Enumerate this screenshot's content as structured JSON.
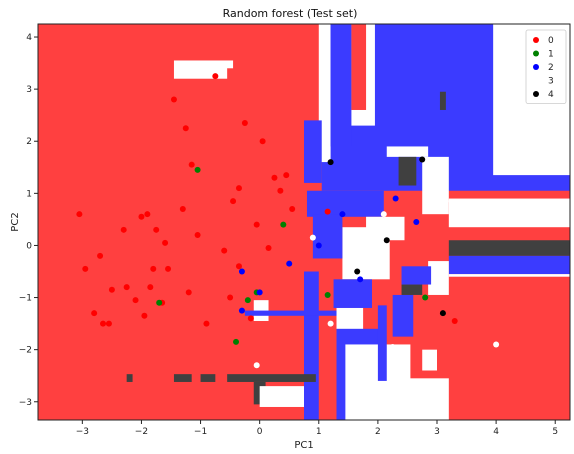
{
  "chart_data": {
    "type": "scatter",
    "title": "Random forest (Test set)",
    "xlabel": "PC1",
    "ylabel": "PC2",
    "xlim": [
      -3.75,
      5.25
    ],
    "ylim": [
      -3.35,
      4.25
    ],
    "xticks": [
      -3,
      -2,
      -1,
      0,
      1,
      2,
      3,
      4,
      5
    ],
    "yticks": [
      -3,
      -2,
      -1,
      0,
      1,
      2,
      3,
      4
    ],
    "legend_position": "top-right",
    "colors": {
      "0": "#ff0000",
      "1": "#008000",
      "2": "#0000ff",
      "3": "#ffffff",
      "4": "#000000",
      "region_0": "#ff4040",
      "region_1": "#3a8a3a",
      "region_2": "#3b3bff",
      "region_3": "#ffffff",
      "region_4": "#404040"
    },
    "regions": [
      {
        "class": "0",
        "x": [
          -3.75,
          5.25
        ],
        "y": [
          -3.35,
          4.25
        ]
      },
      {
        "class": "2",
        "x": [
          1.05,
          5.25
        ],
        "y": [
          1.05,
          4.25
        ]
      },
      {
        "class": "3",
        "x": [
          3.95,
          5.25
        ],
        "y": [
          1.35,
          4.25
        ]
      },
      {
        "class": "3",
        "x": [
          1.0,
          1.2
        ],
        "y": [
          1.6,
          4.25
        ]
      },
      {
        "class": "3",
        "x": [
          1.55,
          1.95
        ],
        "y": [
          2.3,
          4.25
        ]
      },
      {
        "class": "0",
        "x": [
          1.55,
          1.8
        ],
        "y": [
          2.6,
          4.25
        ]
      },
      {
        "class": "2",
        "x": [
          1.2,
          1.55
        ],
        "y": [
          1.9,
          4.25
        ]
      },
      {
        "class": "2",
        "x": [
          0.75,
          1.05
        ],
        "y": [
          1.2,
          2.4
        ]
      },
      {
        "class": "2",
        "x": [
          0.8,
          2.1
        ],
        "y": [
          0.55,
          1.05
        ]
      },
      {
        "class": "3",
        "x": [
          2.15,
          2.85
        ],
        "y": [
          1.7,
          1.9
        ]
      },
      {
        "class": "4",
        "x": [
          2.35,
          2.65
        ],
        "y": [
          1.15,
          1.7
        ]
      },
      {
        "class": "3",
        "x": [
          2.75,
          3.2
        ],
        "y": [
          0.6,
          1.7
        ]
      },
      {
        "class": "3",
        "x": [
          3.2,
          5.25
        ],
        "y": [
          0.35,
          0.9
        ]
      },
      {
        "class": "4",
        "x": [
          3.2,
          5.25
        ],
        "y": [
          -0.2,
          0.1
        ]
      },
      {
        "class": "2",
        "x": [
          3.2,
          5.25
        ],
        "y": [
          -0.55,
          -0.2
        ]
      },
      {
        "class": "3",
        "x": [
          3.2,
          5.25
        ],
        "y": [
          -0.6,
          -0.55
        ]
      },
      {
        "class": "3",
        "x": [
          1.4,
          2.2
        ],
        "y": [
          -0.65,
          0.35
        ]
      },
      {
        "class": "3",
        "x": [
          1.8,
          2.45
        ],
        "y": [
          0.1,
          0.55
        ]
      },
      {
        "class": "2",
        "x": [
          0.9,
          1.4
        ],
        "y": [
          -0.25,
          0.6
        ]
      },
      {
        "class": "2",
        "x": [
          1.25,
          1.9
        ],
        "y": [
          -1.2,
          -0.65
        ]
      },
      {
        "class": "3",
        "x": [
          1.3,
          1.75
        ],
        "y": [
          -2.2,
          -1.2
        ]
      },
      {
        "class": "2",
        "x": [
          1.3,
          2.05
        ],
        "y": [
          -3.35,
          -1.6
        ]
      },
      {
        "class": "3",
        "x": [
          1.45,
          2.55
        ],
        "y": [
          -3.35,
          -1.9
        ]
      },
      {
        "class": "3",
        "x": [
          2.05,
          3.2
        ],
        "y": [
          -3.35,
          -2.55
        ]
      },
      {
        "class": "2",
        "x": [
          2.0,
          2.15
        ],
        "y": [
          -2.6,
          -1.15
        ]
      },
      {
        "class": "2",
        "x": [
          2.25,
          2.6
        ],
        "y": [
          -1.75,
          -0.95
        ]
      },
      {
        "class": "0",
        "x": [
          2.6,
          2.95
        ],
        "y": [
          -2.5,
          -0.85
        ]
      },
      {
        "class": "3",
        "x": [
          2.75,
          3.0
        ],
        "y": [
          -2.4,
          -2.0
        ]
      },
      {
        "class": "3",
        "x": [
          2.85,
          3.2
        ],
        "y": [
          -0.95,
          -0.3
        ]
      },
      {
        "class": "4",
        "x": [
          2.4,
          2.75
        ],
        "y": [
          -0.95,
          -0.75
        ]
      },
      {
        "class": "2",
        "x": [
          2.4,
          2.9
        ],
        "y": [
          -0.75,
          -0.4
        ]
      },
      {
        "class": "2",
        "x": [
          0.75,
          1.0
        ],
        "y": [
          -3.35,
          -0.5
        ]
      },
      {
        "class": "3",
        "x": [
          -0.1,
          0.15
        ],
        "y": [
          -1.45,
          -1.05
        ]
      },
      {
        "class": "2",
        "x": [
          -0.25,
          1.3
        ],
        "y": [
          -1.35,
          -1.25
        ]
      },
      {
        "class": "3",
        "x": [
          -1.45,
          -0.45
        ],
        "y": [
          3.2,
          3.55
        ]
      },
      {
        "class": "0",
        "x": [
          -0.55,
          0.2
        ],
        "y": [
          3.1,
          3.4
        ]
      },
      {
        "class": "4",
        "x": [
          -1.45,
          -1.15
        ],
        "y": [
          -2.62,
          -2.47
        ]
      },
      {
        "class": "4",
        "x": [
          -1.0,
          -0.75
        ],
        "y": [
          -2.62,
          -2.47
        ]
      },
      {
        "class": "4",
        "x": [
          -0.55,
          0.95
        ],
        "y": [
          -2.62,
          -2.47
        ]
      },
      {
        "class": "4",
        "x": [
          -0.1,
          0.1
        ],
        "y": [
          -3.05,
          -2.62
        ]
      },
      {
        "class": "4",
        "x": [
          -2.25,
          -2.15
        ],
        "y": [
          -2.62,
          -2.47
        ]
      },
      {
        "class": "4",
        "x": [
          3.05,
          3.15
        ],
        "y": [
          2.6,
          2.95
        ]
      },
      {
        "class": "3",
        "x": [
          0.0,
          0.75
        ],
        "y": [
          -3.1,
          -2.7
        ]
      }
    ],
    "series": [
      {
        "name": "0",
        "x": [
          -3.05,
          -2.95,
          -2.8,
          -2.65,
          -2.55,
          -2.25,
          -2.1,
          -1.95,
          -1.9,
          -1.85,
          -1.75,
          -1.65,
          -1.55,
          -1.45,
          -1.25,
          -1.2,
          -1.15,
          -1.05,
          -0.9,
          -0.75,
          -0.6,
          -0.5,
          -0.45,
          -0.35,
          -0.25,
          -0.15,
          -0.05,
          0.05,
          0.15,
          0.25,
          0.35,
          0.45,
          0.55,
          -2.5,
          -2.3,
          -2.0,
          -1.8,
          -1.6,
          -1.3,
          -2.7,
          -0.35,
          2.1,
          1.15,
          3.3
        ],
        "y": [
          0.6,
          -0.45,
          -1.3,
          -1.5,
          -1.5,
          -0.8,
          -1.05,
          -1.35,
          0.6,
          -0.8,
          0.3,
          -1.1,
          -0.45,
          2.8,
          2.25,
          -0.9,
          1.55,
          0.2,
          -1.5,
          3.25,
          -0.1,
          -1.0,
          0.85,
          1.1,
          2.35,
          -1.4,
          0.4,
          2.0,
          -0.05,
          1.3,
          1.05,
          1.35,
          0.7,
          -0.85,
          0.3,
          0.55,
          -0.45,
          0.05,
          0.7,
          -0.2,
          -0.4,
          0.6,
          0.65,
          -1.45
        ]
      },
      {
        "name": "1",
        "x": [
          -1.05,
          -1.7,
          -0.2,
          -0.05,
          -0.4,
          0.4,
          1.15,
          2.8
        ],
        "y": [
          1.45,
          -1.1,
          -1.05,
          -0.9,
          -1.85,
          0.4,
          -0.95,
          -1.0
        ]
      },
      {
        "name": "2",
        "x": [
          -0.3,
          0.5,
          1.4,
          1.0,
          1.7,
          2.3,
          2.65,
          -0.3,
          0.0
        ],
        "y": [
          -1.25,
          -0.35,
          0.6,
          0.0,
          -0.65,
          0.9,
          0.45,
          -0.5,
          -0.9
        ]
      },
      {
        "name": "3",
        "x": [
          -0.05,
          3.15,
          4.2,
          4.0,
          2.25,
          1.2,
          0.9,
          2.1
        ],
        "y": [
          -2.3,
          0.85,
          0.8,
          -1.9,
          -1.95,
          -1.5,
          0.15,
          0.6
        ]
      },
      {
        "name": "4",
        "x": [
          1.2,
          2.75,
          1.65,
          2.15,
          3.1
        ],
        "y": [
          1.6,
          1.65,
          -0.5,
          0.1,
          -1.3
        ]
      }
    ]
  }
}
